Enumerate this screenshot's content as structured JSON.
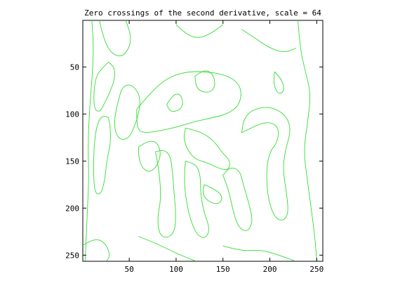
{
  "chart_data": {
    "type": "line",
    "title": "Zero crossings of the second derivative, scale = 64",
    "xlabel": "",
    "ylabel": "",
    "xlim": [
      0.5,
      256.5
    ],
    "ylim": [
      256.5,
      0.5
    ],
    "y_reversed": true,
    "x_ticks": [
      50,
      100,
      150,
      200,
      250
    ],
    "y_ticks": [
      50,
      100,
      150,
      200,
      250
    ],
    "x_tick_labels": [
      "50",
      "100",
      "150",
      "200",
      "250"
    ],
    "y_tick_labels": [
      "50",
      "100",
      "150",
      "200",
      "250"
    ],
    "grid": false,
    "line_color": "#33dd33",
    "series": [
      {
        "points": [
          [
            10,
            0
          ],
          [
            12,
            22
          ],
          [
            11,
            55
          ],
          [
            8,
            90
          ],
          [
            6,
            130
          ],
          [
            7,
            170
          ],
          [
            5,
            210
          ],
          [
            3,
            256
          ]
        ]
      },
      {
        "points": [
          [
            18,
            0
          ],
          [
            22,
            18
          ],
          [
            30,
            35
          ],
          [
            42,
            40
          ],
          [
            50,
            30
          ],
          [
            52,
            18
          ],
          [
            48,
            5
          ],
          [
            46,
            0
          ]
        ]
      },
      {
        "points": [
          [
            28,
            45
          ],
          [
            20,
            52
          ],
          [
            14,
            62
          ],
          [
            12,
            80
          ],
          [
            13,
            95
          ],
          [
            18,
            98
          ],
          [
            22,
            92
          ],
          [
            28,
            80
          ],
          [
            35,
            62
          ],
          [
            34,
            50
          ],
          [
            28,
            45
          ]
        ]
      },
      {
        "points": [
          [
            40,
            80
          ],
          [
            42,
            72
          ],
          [
            50,
            68
          ],
          [
            58,
            74
          ],
          [
            62,
            85
          ],
          [
            60,
            100
          ],
          [
            55,
            115
          ],
          [
            50,
            125
          ],
          [
            42,
            128
          ],
          [
            36,
            122
          ],
          [
            34,
            110
          ],
          [
            36,
            95
          ],
          [
            40,
            80
          ]
        ]
      },
      {
        "points": [
          [
            28,
            104
          ],
          [
            22,
            100
          ],
          [
            15,
            112
          ],
          [
            12,
            140
          ],
          [
            12,
            170
          ],
          [
            14,
            185
          ],
          [
            20,
            185
          ],
          [
            24,
            170
          ],
          [
            26,
            150
          ],
          [
            30,
            132
          ],
          [
            30,
            116
          ],
          [
            28,
            104
          ]
        ]
      },
      {
        "points": [
          [
            58,
            95
          ],
          [
            72,
            78
          ],
          [
            90,
            62
          ],
          [
            110,
            55
          ],
          [
            135,
            55
          ],
          [
            158,
            60
          ],
          [
            170,
            72
          ],
          [
            168,
            90
          ],
          [
            155,
            100
          ],
          [
            138,
            104
          ],
          [
            120,
            108
          ],
          [
            100,
            114
          ],
          [
            82,
            118
          ],
          [
            68,
            120
          ],
          [
            60,
            118
          ],
          [
            58,
            108
          ],
          [
            58,
            95
          ]
        ]
      },
      {
        "points": [
          [
            90,
            90
          ],
          [
            96,
            80
          ],
          [
            104,
            78
          ],
          [
            108,
            88
          ],
          [
            104,
            96
          ],
          [
            94,
            98
          ],
          [
            90,
            90
          ]
        ]
      },
      {
        "points": [
          [
            120,
            60
          ],
          [
            130,
            52
          ],
          [
            140,
            58
          ],
          [
            142,
            72
          ],
          [
            134,
            78
          ],
          [
            122,
            74
          ],
          [
            120,
            60
          ]
        ]
      },
      {
        "points": [
          [
            60,
            135
          ],
          [
            70,
            128
          ],
          [
            80,
            130
          ],
          [
            84,
            142
          ],
          [
            80,
            155
          ],
          [
            72,
            162
          ],
          [
            64,
            158
          ],
          [
            60,
            146
          ],
          [
            60,
            135
          ]
        ]
      },
      {
        "points": [
          [
            110,
            115
          ],
          [
            125,
            118
          ],
          [
            140,
            128
          ],
          [
            150,
            142
          ],
          [
            158,
            150
          ],
          [
            156,
            160
          ],
          [
            146,
            158
          ],
          [
            134,
            152
          ],
          [
            120,
            148
          ],
          [
            112,
            138
          ],
          [
            108,
            126
          ],
          [
            110,
            115
          ]
        ]
      },
      {
        "points": [
          [
            170,
            120
          ],
          [
            185,
            112
          ],
          [
            200,
            108
          ],
          [
            210,
            115
          ],
          [
            208,
            130
          ],
          [
            200,
            140
          ],
          [
            196,
            160
          ],
          [
            198,
            190
          ],
          [
            205,
            210
          ],
          [
            214,
            214
          ],
          [
            220,
            206
          ],
          [
            218,
            185
          ],
          [
            214,
            160
          ],
          [
            216,
            140
          ],
          [
            222,
            120
          ],
          [
            220,
            106
          ],
          [
            210,
            96
          ],
          [
            196,
            92
          ],
          [
            180,
            96
          ],
          [
            172,
            106
          ],
          [
            170,
            120
          ]
        ]
      },
      {
        "points": [
          [
            78,
            140
          ],
          [
            82,
            160
          ],
          [
            84,
            190
          ],
          [
            80,
            210
          ],
          [
            82,
            228
          ],
          [
            90,
            232
          ],
          [
            98,
            226
          ],
          [
            100,
            210
          ],
          [
            98,
            185
          ],
          [
            96,
            160
          ],
          [
            94,
            145
          ],
          [
            88,
            138
          ],
          [
            78,
            140
          ]
        ]
      },
      {
        "points": [
          [
            110,
            150
          ],
          [
            108,
            170
          ],
          [
            112,
            200
          ],
          [
            118,
            220
          ],
          [
            124,
            230
          ],
          [
            132,
            232
          ],
          [
            136,
            222
          ],
          [
            130,
            205
          ],
          [
            126,
            185
          ],
          [
            126,
            166
          ],
          [
            122,
            154
          ],
          [
            110,
            150
          ]
        ]
      },
      {
        "points": [
          [
            150,
            165
          ],
          [
            156,
            180
          ],
          [
            160,
            200
          ],
          [
            166,
            220
          ],
          [
            176,
            226
          ],
          [
            182,
            214
          ],
          [
            178,
            196
          ],
          [
            172,
            176
          ],
          [
            168,
            160
          ],
          [
            158,
            156
          ],
          [
            150,
            165
          ]
        ]
      },
      {
        "points": [
          [
            230,
            0
          ],
          [
            232,
            30
          ],
          [
            238,
            55
          ],
          [
            244,
            80
          ],
          [
            240,
            110
          ],
          [
            236,
            140
          ],
          [
            240,
            170
          ],
          [
            244,
            200
          ],
          [
            248,
            230
          ],
          [
            250,
            256
          ]
        ]
      },
      {
        "points": [
          [
            170,
            10
          ],
          [
            185,
            20
          ],
          [
            200,
            30
          ],
          [
            215,
            35
          ],
          [
            228,
            30
          ]
        ]
      },
      {
        "points": [
          [
            100,
            5
          ],
          [
            110,
            15
          ],
          [
            124,
            20
          ],
          [
            138,
            14
          ],
          [
            150,
            5
          ]
        ]
      },
      {
        "points": [
          [
            60,
            230
          ],
          [
            80,
            238
          ],
          [
            100,
            248
          ],
          [
            120,
            256
          ]
        ]
      },
      {
        "points": [
          [
            150,
            240
          ],
          [
            170,
            246
          ],
          [
            190,
            244
          ],
          [
            210,
            250
          ],
          [
            226,
            256
          ]
        ]
      },
      {
        "points": [
          [
            205,
            55
          ],
          [
            212,
            62
          ],
          [
            216,
            74
          ],
          [
            210,
            80
          ],
          [
            204,
            70
          ],
          [
            205,
            55
          ]
        ]
      },
      {
        "points": [
          [
            0,
            240
          ],
          [
            12,
            232
          ],
          [
            24,
            236
          ],
          [
            30,
            250
          ],
          [
            26,
            256
          ]
        ]
      },
      {
        "points": [
          [
            130,
            175
          ],
          [
            142,
            180
          ],
          [
            150,
            188
          ],
          [
            146,
            196
          ],
          [
            136,
            194
          ],
          [
            128,
            186
          ],
          [
            130,
            175
          ]
        ]
      }
    ]
  }
}
